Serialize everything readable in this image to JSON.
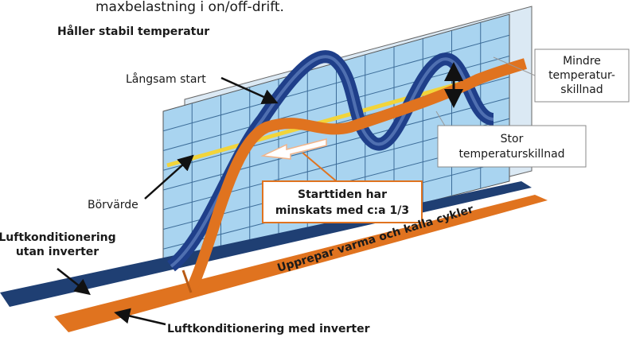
{
  "header": {
    "clipped_text": "maxbelastning i on/off-drift.",
    "title": "Håller stabil temperatur"
  },
  "labels": {
    "slow_start": "Långsam start",
    "small_diff": [
      "Mindre",
      "temperatur-",
      "skillnad"
    ],
    "large_diff": [
      "Stor",
      "temperaturskillnad"
    ],
    "setpoint": "Börvärde",
    "start_time": [
      "Starttiden har",
      "minskats med c:a 1/3"
    ],
    "without_inverter": [
      "Luftkonditionering",
      "utan inverter"
    ],
    "cycles": "Upprepar varma och kalla cykler",
    "with_inverter": "Luftkonditionering med inverter"
  }
}
